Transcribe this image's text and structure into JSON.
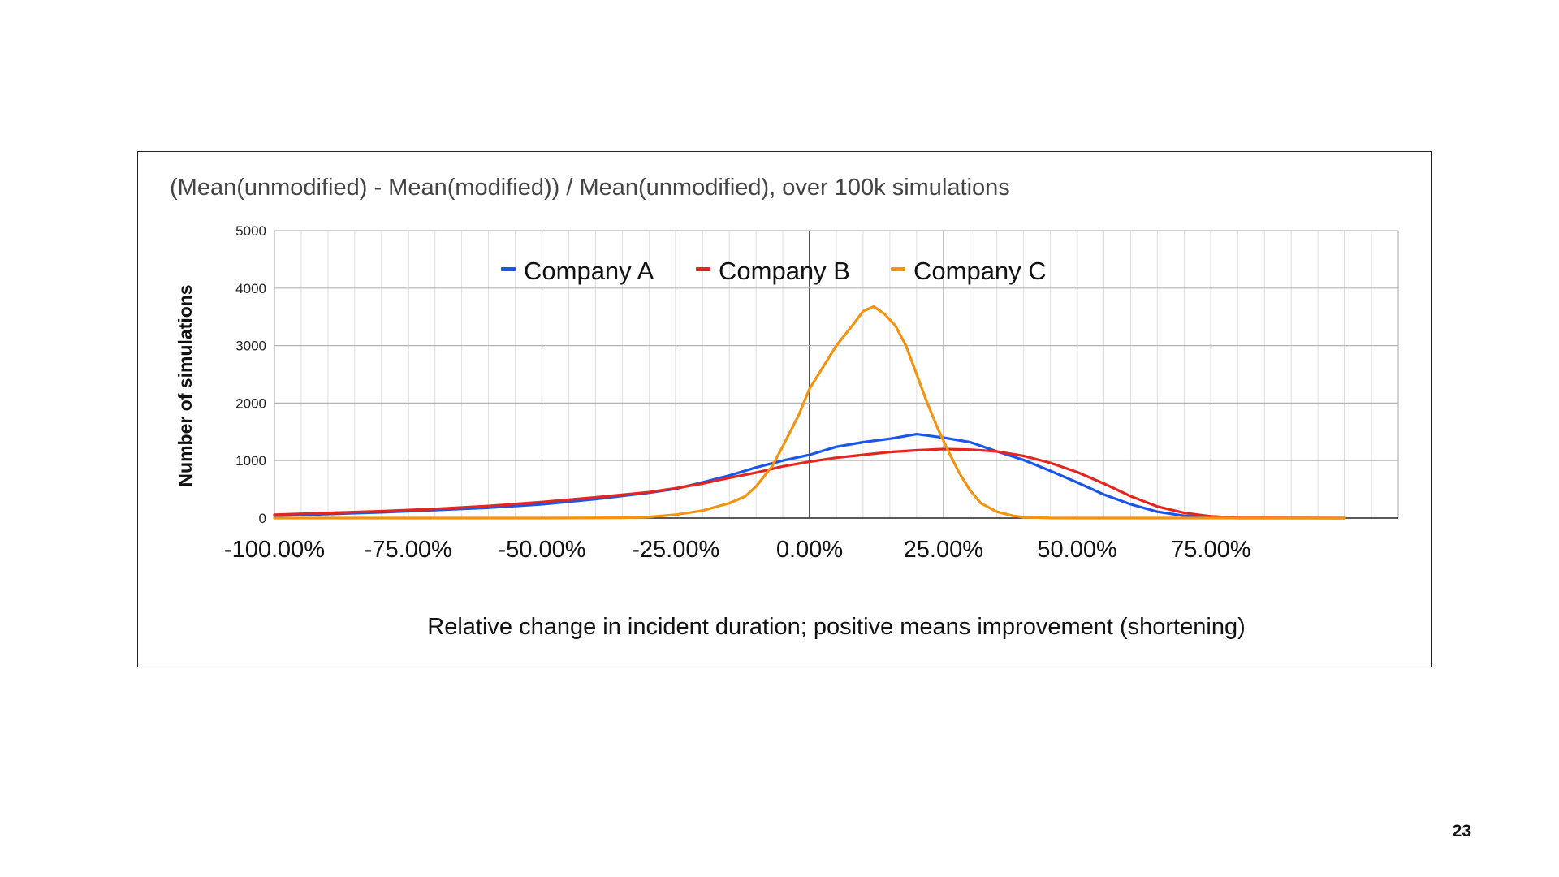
{
  "page": {
    "number": "23"
  },
  "chart_data": {
    "type": "line",
    "title": "(Mean(unmodified) - Mean(modified)) / Mean(unmodified), over 100k simulations",
    "xlabel": "Relative change in incident duration; positive means improvement (shortening)",
    "ylabel": "Number of simulations",
    "xlim": [
      -1.0,
      1.1
    ],
    "ylim": [
      0,
      5000
    ],
    "x_ticks": [
      -1.0,
      -0.75,
      -0.5,
      -0.25,
      0.0,
      0.25,
      0.5,
      0.75
    ],
    "x_tick_labels": [
      "-100.00%",
      "-75.00%",
      "-50.00%",
      "-25.00%",
      "0.00%",
      "25.00%",
      "50.00%",
      "75.00%"
    ],
    "y_ticks": [
      0,
      1000,
      2000,
      3000,
      4000,
      5000
    ],
    "y_tick_labels": [
      "0",
      "1000",
      "2000",
      "3000",
      "4000",
      "5000"
    ],
    "grid": true,
    "legend": "top-center",
    "series": [
      {
        "name": "Company A",
        "color": "#1a56e8",
        "points": [
          [
            -1.0,
            40
          ],
          [
            -0.9,
            70
          ],
          [
            -0.8,
            100
          ],
          [
            -0.7,
            140
          ],
          [
            -0.6,
            180
          ],
          [
            -0.5,
            240
          ],
          [
            -0.4,
            330
          ],
          [
            -0.3,
            440
          ],
          [
            -0.25,
            510
          ],
          [
            -0.2,
            620
          ],
          [
            -0.15,
            740
          ],
          [
            -0.1,
            880
          ],
          [
            -0.05,
            1000
          ],
          [
            0.0,
            1100
          ],
          [
            0.05,
            1240
          ],
          [
            0.1,
            1320
          ],
          [
            0.15,
            1380
          ],
          [
            0.2,
            1460
          ],
          [
            0.25,
            1400
          ],
          [
            0.3,
            1320
          ],
          [
            0.35,
            1160
          ],
          [
            0.4,
            1010
          ],
          [
            0.45,
            820
          ],
          [
            0.5,
            620
          ],
          [
            0.55,
            410
          ],
          [
            0.6,
            240
          ],
          [
            0.65,
            110
          ],
          [
            0.7,
            40
          ],
          [
            0.75,
            10
          ],
          [
            0.8,
            0
          ],
          [
            1.0,
            0
          ]
        ]
      },
      {
        "name": "Company B",
        "color": "#e3261f",
        "points": [
          [
            -1.0,
            60
          ],
          [
            -0.9,
            90
          ],
          [
            -0.8,
            120
          ],
          [
            -0.7,
            160
          ],
          [
            -0.6,
            210
          ],
          [
            -0.5,
            280
          ],
          [
            -0.4,
            360
          ],
          [
            -0.3,
            450
          ],
          [
            -0.25,
            520
          ],
          [
            -0.2,
            600
          ],
          [
            -0.15,
            700
          ],
          [
            -0.1,
            790
          ],
          [
            -0.05,
            900
          ],
          [
            0.0,
            980
          ],
          [
            0.05,
            1050
          ],
          [
            0.1,
            1100
          ],
          [
            0.15,
            1150
          ],
          [
            0.2,
            1180
          ],
          [
            0.25,
            1200
          ],
          [
            0.3,
            1190
          ],
          [
            0.35,
            1160
          ],
          [
            0.4,
            1080
          ],
          [
            0.45,
            960
          ],
          [
            0.5,
            800
          ],
          [
            0.55,
            600
          ],
          [
            0.6,
            380
          ],
          [
            0.65,
            200
          ],
          [
            0.7,
            90
          ],
          [
            0.75,
            30
          ],
          [
            0.8,
            5
          ],
          [
            1.0,
            0
          ]
        ]
      },
      {
        "name": "Company C",
        "color": "#f4930f",
        "points": [
          [
            -1.0,
            0
          ],
          [
            -0.5,
            0
          ],
          [
            -0.35,
            5
          ],
          [
            -0.3,
            20
          ],
          [
            -0.25,
            60
          ],
          [
            -0.2,
            130
          ],
          [
            -0.15,
            260
          ],
          [
            -0.12,
            380
          ],
          [
            -0.1,
            550
          ],
          [
            -0.07,
            900
          ],
          [
            -0.05,
            1250
          ],
          [
            -0.02,
            1800
          ],
          [
            0.0,
            2250
          ],
          [
            0.03,
            2700
          ],
          [
            0.05,
            3000
          ],
          [
            0.08,
            3350
          ],
          [
            0.1,
            3600
          ],
          [
            0.12,
            3680
          ],
          [
            0.14,
            3550
          ],
          [
            0.16,
            3350
          ],
          [
            0.18,
            3000
          ],
          [
            0.2,
            2500
          ],
          [
            0.22,
            2000
          ],
          [
            0.24,
            1550
          ],
          [
            0.26,
            1150
          ],
          [
            0.28,
            780
          ],
          [
            0.3,
            480
          ],
          [
            0.32,
            260
          ],
          [
            0.35,
            110
          ],
          [
            0.38,
            40
          ],
          [
            0.4,
            15
          ],
          [
            0.45,
            2
          ],
          [
            0.5,
            0
          ],
          [
            1.0,
            0
          ]
        ]
      }
    ]
  }
}
